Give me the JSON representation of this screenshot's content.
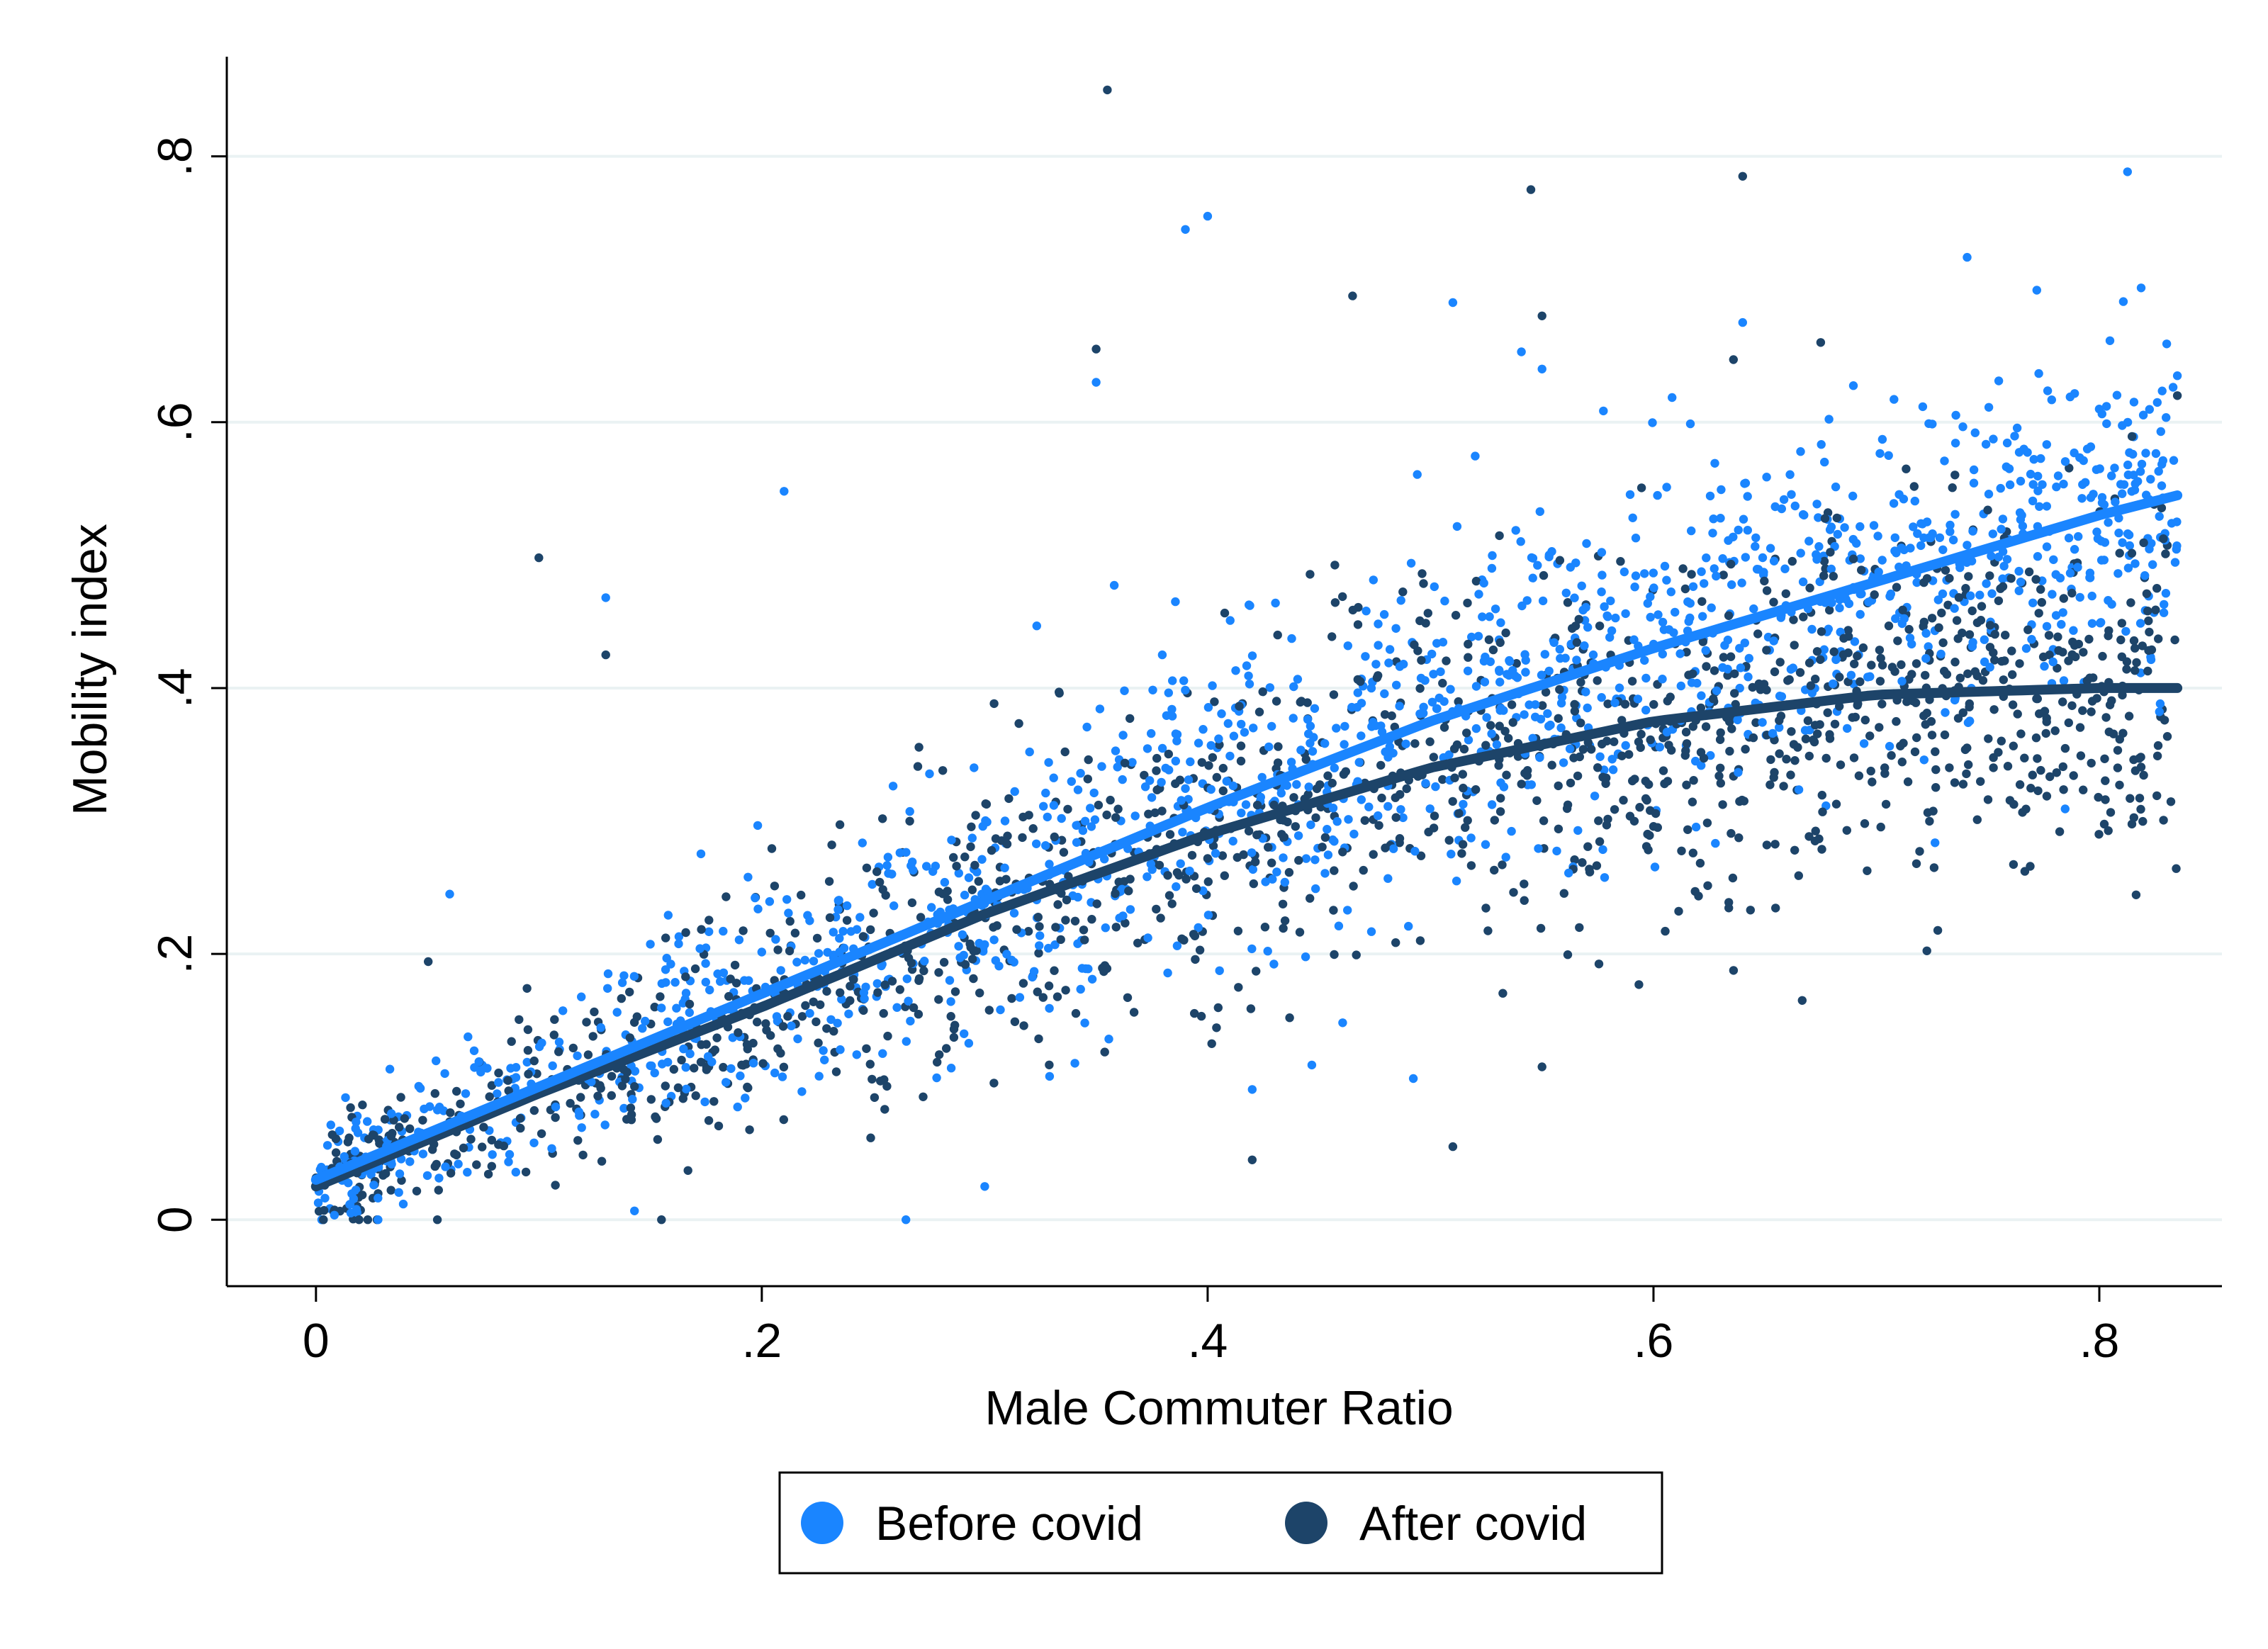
{
  "chart_data": {
    "type": "scatter",
    "title": "",
    "xlabel": "Male Commuter Ratio",
    "ylabel": "Mobility index",
    "xlim": [
      -0.04,
      0.855
    ],
    "ylim": [
      -0.05,
      0.875
    ],
    "x_ticks": [
      0,
      0.2,
      0.4,
      0.6,
      0.8
    ],
    "x_tick_labels": [
      "0",
      ".2",
      ".4",
      ".6",
      ".8"
    ],
    "y_ticks": [
      0,
      0.2,
      0.4,
      0.6,
      0.8
    ],
    "y_tick_labels": [
      "0",
      ".2",
      ".4",
      ".6",
      ".8"
    ],
    "grid": "horizontal",
    "legend_position": "bottom",
    "series": [
      {
        "name": "Before covid",
        "color": "#1a85ff",
        "marker": "dot",
        "point_count_approx": 1500,
        "fit": {
          "x": [
            0.0,
            0.1,
            0.2,
            0.3,
            0.4,
            0.5,
            0.6,
            0.7,
            0.8,
            0.835
          ],
          "y": [
            0.03,
            0.1,
            0.17,
            0.24,
            0.31,
            0.375,
            0.43,
            0.48,
            0.53,
            0.545
          ]
        },
        "notable_points": [
          {
            "x": 0.39,
            "y": 0.745
          },
          {
            "x": 0.4,
            "y": 0.755
          },
          {
            "x": 0.35,
            "y": 0.63
          },
          {
            "x": 0.51,
            "y": 0.69
          },
          {
            "x": 0.64,
            "y": 0.675
          },
          {
            "x": 0.55,
            "y": 0.64
          },
          {
            "x": 0.21,
            "y": 0.548
          },
          {
            "x": 0.13,
            "y": 0.468
          },
          {
            "x": 0.06,
            "y": 0.245
          },
          {
            "x": 0.835,
            "y": 0.635
          },
          {
            "x": 0.3,
            "y": 0.025
          },
          {
            "x": 0.42,
            "y": 0.098
          }
        ]
      },
      {
        "name": "After covid",
        "color": "#1d4469",
        "marker": "dot",
        "point_count_approx": 1500,
        "fit": {
          "x": [
            0.0,
            0.1,
            0.2,
            0.3,
            0.4,
            0.5,
            0.6,
            0.7,
            0.8,
            0.835
          ],
          "y": [
            0.025,
            0.095,
            0.16,
            0.23,
            0.29,
            0.34,
            0.375,
            0.395,
            0.4,
            0.4
          ]
        },
        "notable_points": [
          {
            "x": 0.355,
            "y": 0.85
          },
          {
            "x": 0.64,
            "y": 0.785
          },
          {
            "x": 0.545,
            "y": 0.775
          },
          {
            "x": 0.465,
            "y": 0.695
          },
          {
            "x": 0.35,
            "y": 0.655
          },
          {
            "x": 0.55,
            "y": 0.68
          },
          {
            "x": 0.675,
            "y": 0.66
          },
          {
            "x": 0.1,
            "y": 0.498
          },
          {
            "x": 0.13,
            "y": 0.425
          },
          {
            "x": 0.835,
            "y": 0.62
          },
          {
            "x": 0.155,
            "y": 0.0
          },
          {
            "x": 0.51,
            "y": 0.055
          },
          {
            "x": 0.42,
            "y": 0.045
          },
          {
            "x": 0.55,
            "y": 0.115
          }
        ]
      }
    ]
  }
}
